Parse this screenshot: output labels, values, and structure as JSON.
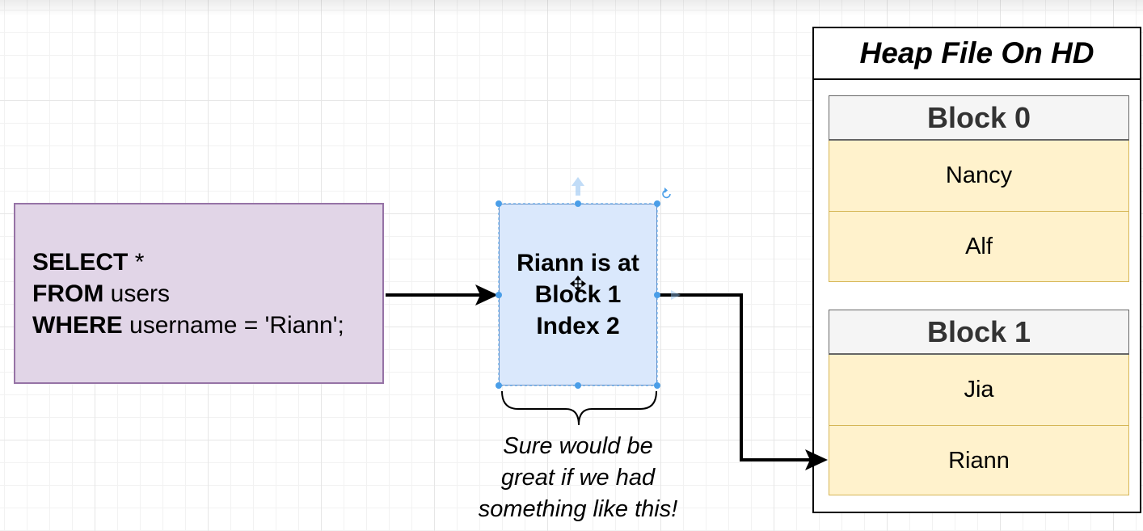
{
  "sql_query": {
    "lines": [
      {
        "keyword": "SELECT",
        "rest": " *"
      },
      {
        "keyword": "FROM",
        "rest": " users"
      },
      {
        "keyword": "WHERE",
        "rest": " username = 'Riann';"
      }
    ]
  },
  "index_box": {
    "lines": [
      "Riann is at",
      "Block 1",
      "Index 2"
    ]
  },
  "caption": {
    "lines": [
      "Sure would be",
      "great if we had",
      "something like this!"
    ]
  },
  "heap_file": {
    "title": "Heap File On HD",
    "blocks": [
      {
        "label": "Block 0",
        "rows": [
          "Nancy",
          "Alf"
        ]
      },
      {
        "label": "Block 1",
        "rows": [
          "Jia",
          "Riann"
        ]
      }
    ]
  },
  "colors": {
    "sql_fill": "#e1d5e7",
    "sql_stroke": "#9673a6",
    "index_fill": "#dae8fc",
    "index_stroke": "#6c8ebf",
    "block_fill": "#fff2cc",
    "block_stroke": "#d6b656",
    "header_fill": "#f5f5f5",
    "selection_handle": "#4a9ee8"
  },
  "icons": [
    "move-cursor-icon",
    "connection-arrow-up-icon",
    "rotate-handle-icon"
  ]
}
